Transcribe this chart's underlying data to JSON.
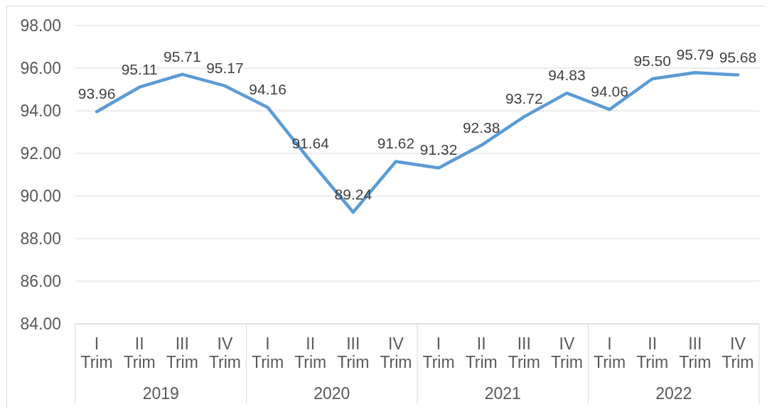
{
  "chart_data": {
    "type": "line",
    "categories": [
      "I Trim",
      "II Trim",
      "III Trim",
      "IV Trim",
      "I Trim",
      "II Trim",
      "III Trim",
      "IV Trim",
      "I Trim",
      "II Trim",
      "III Trim",
      "IV Trim",
      "I Trim",
      "II Trim",
      "III Trim",
      "IV Trim"
    ],
    "values": [
      93.96,
      95.11,
      95.71,
      95.17,
      94.16,
      91.64,
      89.24,
      91.62,
      91.32,
      92.38,
      93.72,
      94.83,
      94.06,
      95.5,
      95.79,
      95.68
    ],
    "color": "#5b9bd5",
    "value_labels": [
      "93.96",
      "95.11",
      "95.71",
      "95.17",
      "94.16",
      "91.64",
      "89.24",
      "91.62",
      "91.32",
      "92.38",
      "93.72",
      "94.83",
      "94.06",
      "95.50",
      "95.79",
      "95.68"
    ],
    "ylim": [
      84,
      98
    ],
    "yticks": [
      {
        "value": 84,
        "label": "84.00"
      },
      {
        "value": 86,
        "label": "86.00"
      },
      {
        "value": 88,
        "label": "88.00"
      },
      {
        "value": 90,
        "label": "90.00"
      },
      {
        "value": 92,
        "label": "92.00"
      },
      {
        "value": 94,
        "label": "94.00"
      },
      {
        "value": 96,
        "label": "96.00"
      },
      {
        "value": 98,
        "label": "98.00"
      }
    ],
    "grid": "y",
    "marker": "none",
    "annotations": [
      "2019",
      "2020",
      "2021",
      "2022"
    ]
  }
}
